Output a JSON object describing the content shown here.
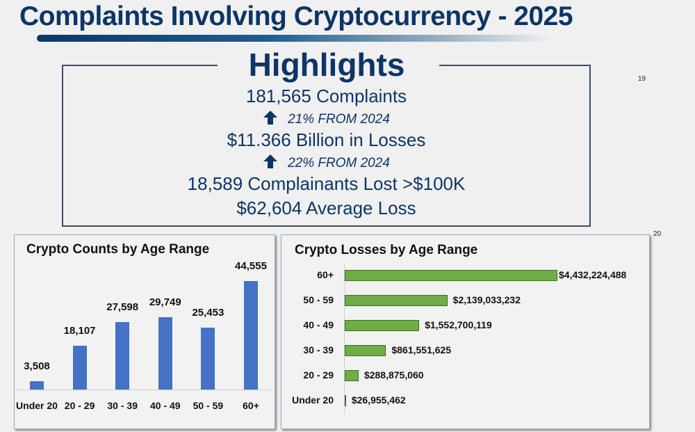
{
  "title": "Complaints Involving Cryptocurrency - 2025",
  "highlights": {
    "heading": "Highlights",
    "complaints": "181,565 Complaints",
    "complaints_change": "21% FROM 2024",
    "losses": "$11.366 Billion in Losses",
    "losses_change": "22% FROM 2024",
    "over_100k": "18,589 Complainants Lost >$100K",
    "average_loss": "$62,604 Average Loss",
    "arrow_icon": "up-arrow"
  },
  "page_numbers": [
    "19",
    "20"
  ],
  "colors": {
    "navy": "#0d3566",
    "blue_bar": "#4472c4",
    "green_bar": "#70ad47"
  },
  "chart_data": [
    {
      "type": "bar",
      "title": "Crypto Counts by Age Range",
      "categories": [
        "Under 20",
        "20 - 29",
        "30 - 39",
        "40 - 49",
        "50 - 59",
        "60+"
      ],
      "values": [
        3508,
        18107,
        27598,
        29749,
        25453,
        44555
      ],
      "data_labels": [
        "3,508",
        "18,107",
        "27,598",
        "29,749",
        "25,453",
        "44,555"
      ],
      "orientation": "vertical",
      "grid": false
    },
    {
      "type": "bar",
      "title": "Crypto Losses by Age Range",
      "categories": [
        "60+",
        "50 - 59",
        "40 - 49",
        "30 - 39",
        "20 - 29",
        "Under 20"
      ],
      "values": [
        4432224488,
        2139033232,
        1552700119,
        861551625,
        288875060,
        26955462
      ],
      "data_labels": [
        "$4,432,224,488",
        "$2,139,033,232",
        "$1,552,700,119",
        "$861,551,625",
        "$288,875,060",
        "$26,955,462"
      ],
      "orientation": "horizontal",
      "grid": false
    }
  ]
}
